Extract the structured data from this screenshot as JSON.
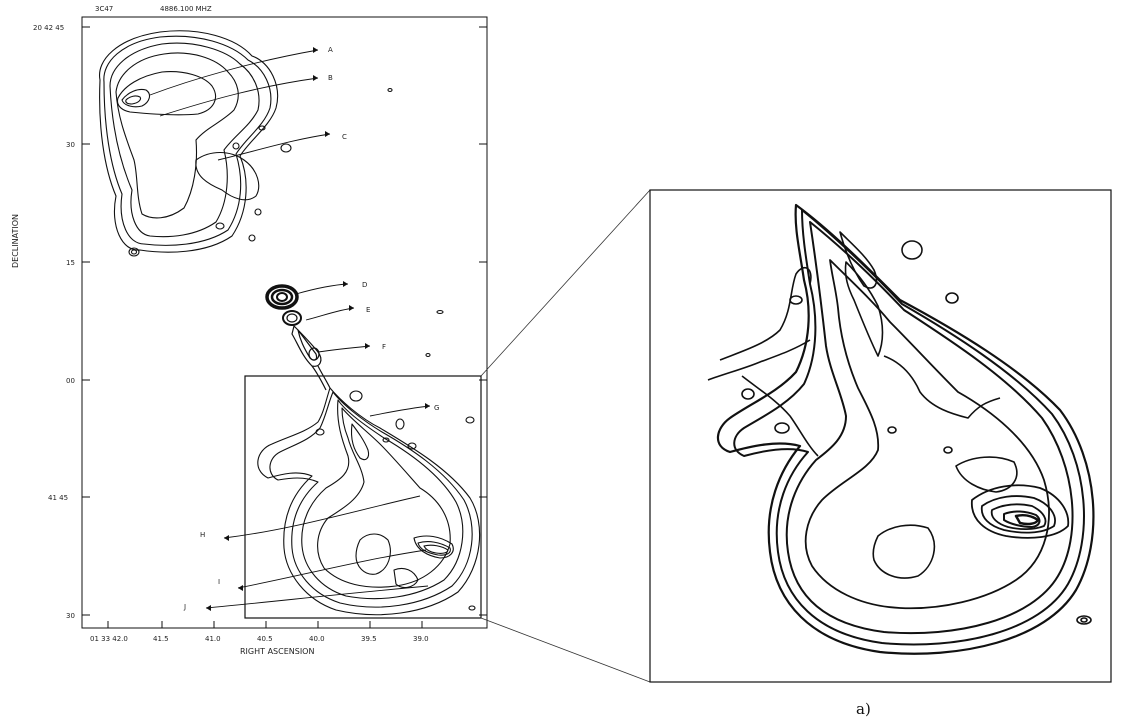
{
  "header": {
    "source": "3C47",
    "frequency": "4886.100 MHZ"
  },
  "axes": {
    "x_label": "RIGHT ASCENSION",
    "y_label": "DECLINATION",
    "y_ticks": [
      "20 42 45",
      "30",
      "15",
      "00",
      "41 45",
      "30"
    ],
    "x_ticks": [
      "01 33 42.0",
      "41.5",
      "41.0",
      "40.5",
      "40.0",
      "39.5",
      "39.0"
    ]
  },
  "features": [
    "A",
    "B",
    "C",
    "D",
    "E",
    "F",
    "G",
    "H",
    "I",
    "J"
  ],
  "caption": "a)"
}
